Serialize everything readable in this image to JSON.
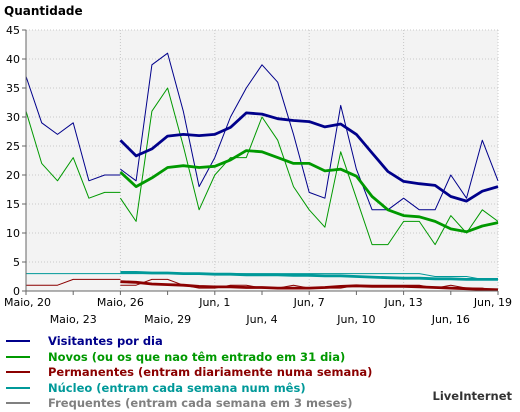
{
  "chart_data": {
    "type": "line",
    "ylabel": "Quantidade",
    "ylim": [
      0,
      45
    ],
    "y_ticks": [
      0,
      5,
      10,
      15,
      20,
      25,
      30,
      35,
      40,
      45
    ],
    "x_tick_labels_row1": [
      "Maio, 20",
      "Maio, 26",
      "Jun, 1",
      "Jun, 7",
      "Jun, 13",
      "Jun, 19"
    ],
    "x_tick_labels_row2": [
      "Maio, 23",
      "Maio, 29",
      "Jun, 4",
      "Jun, 10",
      "Jun, 16"
    ],
    "grid": true,
    "legend_position": "bottom",
    "series": [
      {
        "name": "Visitantes por dia",
        "color": "#00008b",
        "daily_width": 1,
        "avg_width": 2.8,
        "daily_segments": [
          {
            "start": 0,
            "values": [
              37,
              29,
              27,
              29,
              19,
              20,
              20
            ]
          },
          {
            "start": 6,
            "values": [
              21,
              19,
              39,
              41,
              31,
              18,
              23,
              30,
              35,
              39,
              36,
              27,
              17,
              16,
              32,
              21,
              14,
              14,
              16,
              14,
              14,
              20,
              16,
              26,
              19
            ]
          }
        ],
        "avg_segments": [
          {
            "start": 6,
            "values": [
              26,
              23.3,
              24.5,
              26.7,
              27,
              26.8,
              27,
              28.2,
              30.7,
              30.5,
              29.7,
              29.4,
              29.2,
              28.3,
              28.8,
              27,
              23.8,
              20.6,
              18.9,
              18.5,
              18.2,
              16.3,
              15.5,
              17.2,
              18
            ]
          }
        ]
      },
      {
        "name": "Novos (ou os que nao têm entrado em 31 dia)",
        "color": "#009900",
        "daily_width": 1,
        "avg_width": 2.8,
        "daily_segments": [
          {
            "start": 0,
            "values": [
              31,
              22,
              19,
              23,
              16,
              17,
              17
            ]
          },
          {
            "start": 6,
            "values": [
              16,
              12,
              31,
              35,
              25,
              14,
              20,
              23,
              23,
              30,
              26,
              18,
              14,
              11,
              24,
              16,
              8,
              8,
              12,
              12,
              8,
              13,
              10,
              14,
              12
            ]
          }
        ],
        "avg_segments": [
          {
            "start": 6,
            "values": [
              20.5,
              18,
              19.5,
              21.3,
              21.6,
              21.3,
              21.5,
              22.6,
              24.2,
              24,
              23,
              22,
              22,
              20.7,
              21,
              19.8,
              16.3,
              14,
              13,
              12.8,
              12,
              10.7,
              10.2,
              11.2,
              11.8
            ]
          }
        ]
      },
      {
        "name": "Permanentes (entram diariamente numa semana)",
        "color": "#8b0000",
        "daily_width": 1,
        "avg_width": 2.8,
        "daily_segments": [
          {
            "start": 0,
            "values": [
              1,
              1,
              1,
              2,
              2,
              2,
              2
            ]
          },
          {
            "start": 6,
            "values": [
              1,
              1,
              2,
              2,
              1,
              0.5,
              0.5,
              1,
              1,
              0.5,
              0.5,
              1,
              0.5,
              0.5,
              0.5,
              1,
              1,
              1,
              1,
              1,
              0.5,
              1,
              0.5,
              0.5,
              0
            ]
          }
        ],
        "avg_segments": [
          {
            "start": 6,
            "values": [
              1.6,
              1.5,
              1.2,
              1.1,
              1,
              0.8,
              0.7,
              0.7,
              0.6,
              0.6,
              0.5,
              0.5,
              0.5,
              0.6,
              0.8,
              0.9,
              0.8,
              0.8,
              0.8,
              0.7,
              0.6,
              0.5,
              0.4,
              0.3,
              0.2
            ]
          }
        ]
      },
      {
        "name": "Núcleo (entram cada semana num mês)",
        "color": "#009999",
        "daily_width": 1,
        "avg_width": 2.8,
        "daily_segments": [
          {
            "start": 0,
            "values": [
              3,
              3,
              3,
              3,
              3,
              3,
              3
            ]
          },
          {
            "start": 6,
            "values": [
              3,
              3,
              3,
              3,
              3,
              3,
              3,
              3,
              3,
              3,
              3,
              3,
              3,
              3,
              3,
              3,
              3,
              3,
              3,
              3,
              2.5,
              2.5,
              2.5,
              2,
              2
            ]
          }
        ],
        "avg_segments": [
          {
            "start": 6,
            "values": [
              3.2,
              3.2,
              3.1,
              3.1,
              3,
              3,
              2.9,
              2.9,
              2.8,
              2.8,
              2.8,
              2.7,
              2.7,
              2.6,
              2.6,
              2.5,
              2.4,
              2.3,
              2.2,
              2.2,
              2.1,
              2.1,
              2,
              2,
              2
            ]
          }
        ]
      },
      {
        "name": "Frequentes (entram cada semana em 3 meses)",
        "color": "#808080",
        "daily_width": 1,
        "avg_width": 2.8,
        "daily_segments": [],
        "avg_segments": []
      }
    ]
  },
  "footer": {
    "credit": "LiveInternet"
  }
}
